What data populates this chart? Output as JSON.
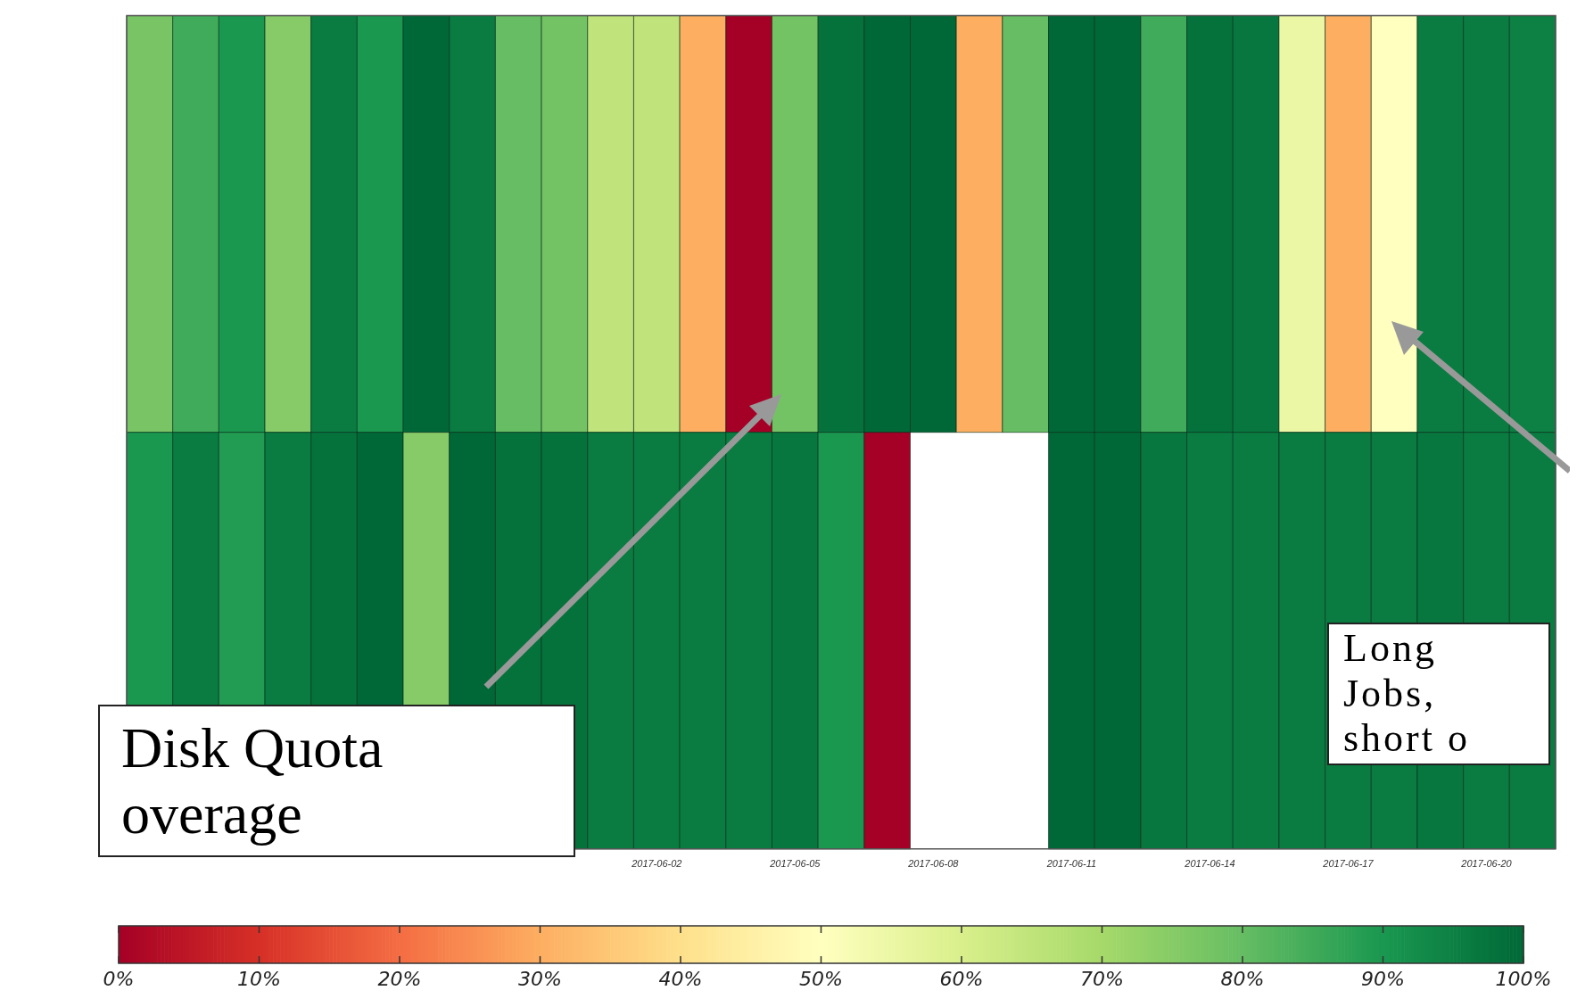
{
  "chart_data": {
    "type": "heatmap",
    "categories": [
      null,
      null,
      null,
      null,
      null,
      null,
      null,
      null,
      null,
      null,
      null,
      "2017-06-02",
      null,
      null,
      "2017-06-05",
      null,
      null,
      "2017-06-08",
      null,
      null,
      "2017-06-11",
      null,
      null,
      "2017-06-14",
      null,
      null,
      "2017-06-17",
      null,
      null,
      "2017-06-20",
      null
    ],
    "y_categories": [
      null,
      null
    ],
    "cells": [
      [
        77,
        85,
        90,
        75,
        96,
        90,
        100,
        96,
        80,
        78,
        65,
        65,
        30,
        0,
        78,
        98,
        100,
        100,
        30,
        80,
        100,
        100,
        85,
        98,
        97,
        55,
        30,
        50,
        96,
        96,
        95
      ],
      [
        90,
        96,
        89,
        96,
        98,
        100,
        75,
        100,
        98,
        98,
        96,
        96,
        96,
        96,
        97,
        90,
        0,
        null,
        null,
        null,
        100,
        100,
        97,
        96,
        96,
        96,
        96,
        96,
        97,
        96,
        96
      ]
    ],
    "clim": [
      0,
      100
    ],
    "cticks": [
      {
        "value": 0,
        "label": "0%"
      },
      {
        "value": 10,
        "label": "10%"
      },
      {
        "value": 20,
        "label": "20%"
      },
      {
        "value": 30,
        "label": "30%"
      },
      {
        "value": 40,
        "label": "40%"
      },
      {
        "value": 50,
        "label": "50%"
      },
      {
        "value": 60,
        "label": "60%"
      },
      {
        "value": 70,
        "label": "70%"
      },
      {
        "value": 80,
        "label": "80%"
      },
      {
        "value": 90,
        "label": "90%"
      },
      {
        "value": 100,
        "label": "100%"
      }
    ],
    "annotations": [
      "Disk Quota overage",
      "Long Jobs, short o"
    ]
  }
}
